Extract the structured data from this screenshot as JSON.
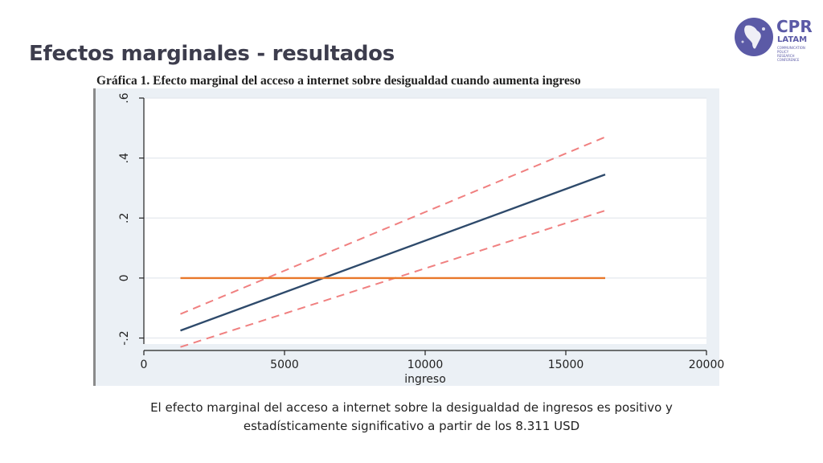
{
  "slide": {
    "title": "Efectos marginales - resultados",
    "footer_line1": "El efecto marginal del acceso a internet sobre la desigualdad de ingresos es positivo y",
    "footer_line2": "estadísticamente significativo a partir de los 8.311 USD"
  },
  "logo": {
    "name": "CPR",
    "sub": "LATAM",
    "tagline_1": "COMMUNICATION POLICY",
    "tagline_2": "RESEARCH CONFERENCE",
    "color": "#5b5aa6"
  },
  "chart_data": {
    "type": "line",
    "title": "Gráfica 1. Efecto marginal del acceso a internet sobre desigualdad cuando aumenta ingreso",
    "xlabel": "ingreso",
    "ylabel": "",
    "xlim": [
      0,
      20000
    ],
    "ylim": [
      -0.22,
      0.6
    ],
    "xticks": [
      0,
      5000,
      10000,
      15000,
      20000
    ],
    "xtick_labels": [
      "0",
      "5000",
      "10000",
      "15000",
      "20000"
    ],
    "yticks": [
      -0.2,
      0,
      0.2,
      0.4,
      0.6
    ],
    "ytick_labels": [
      "-.2",
      "0",
      ".2",
      ".4",
      ".6"
    ],
    "grid": true,
    "background": "#ebf0f5",
    "series": [
      {
        "style": "solid",
        "color": "#2e4a6b",
        "x": [
          1300,
          16400
        ],
        "y": [
          -0.175,
          0.345
        ]
      },
      {
        "style": "dashed",
        "color": "#f08080",
        "x": [
          1300,
          16400
        ],
        "y": [
          -0.12,
          0.47
        ]
      },
      {
        "style": "dashed",
        "color": "#f08080",
        "x": [
          1300,
          16400
        ],
        "y": [
          -0.23,
          0.225
        ]
      },
      {
        "style": "solid",
        "color": "#e8782a",
        "x": [
          1300,
          16400
        ],
        "y": [
          0,
          0
        ]
      }
    ]
  }
}
